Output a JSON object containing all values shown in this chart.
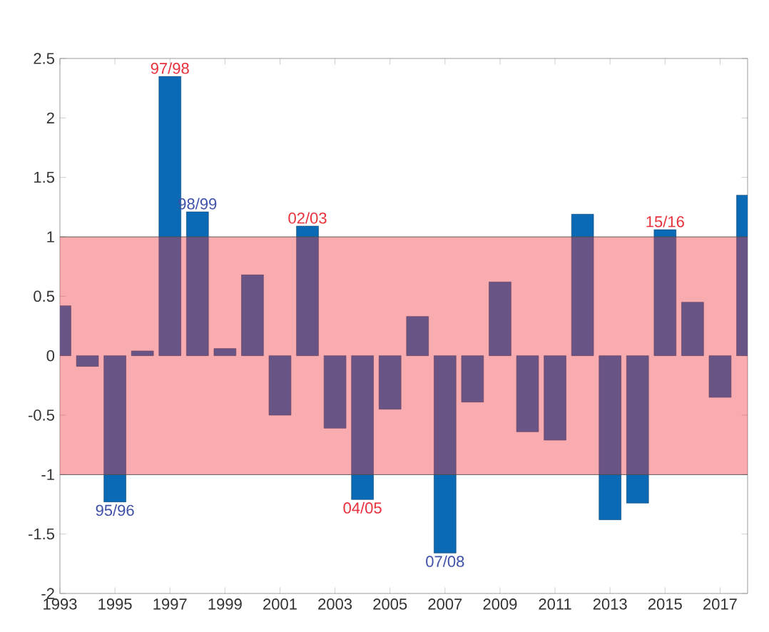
{
  "chart_data": {
    "type": "bar",
    "x": [
      1993,
      1994,
      1995,
      1996,
      1997,
      1998,
      1999,
      2000,
      2001,
      2002,
      2003,
      2004,
      2005,
      2006,
      2007,
      2008,
      2009,
      2010,
      2011,
      2012,
      2013,
      2014,
      2015,
      2016,
      2017,
      2018
    ],
    "values": [
      0.42,
      -0.09,
      -1.23,
      0.04,
      2.35,
      1.21,
      0.06,
      0.68,
      -0.5,
      1.09,
      -0.61,
      -1.21,
      -0.45,
      0.33,
      -1.66,
      -0.39,
      0.62,
      -0.64,
      -0.71,
      1.19,
      -1.38,
      -1.24,
      1.06,
      0.45,
      -0.35,
      1.35
    ],
    "color": "#0a6ab5",
    "xlim": [
      1993,
      2018
    ],
    "xticks": [
      1993,
      1995,
      1997,
      1999,
      2001,
      2003,
      2005,
      2007,
      2009,
      2011,
      2013,
      2015,
      2017
    ],
    "ylim": [
      -2,
      2.5
    ],
    "yticks": [
      -2,
      -1.5,
      -1,
      -0.5,
      0,
      0.5,
      1,
      1.5,
      2,
      2.5
    ],
    "bands": [
      {
        "axis": "y",
        "from": -1,
        "to": 1,
        "color": "#ee3a43"
      }
    ],
    "annotations": [
      {
        "text": "97/98",
        "x": 1997,
        "y": 2.35
      },
      {
        "text": "98/99",
        "x": 1998,
        "y": 1.21
      },
      {
        "text": "02/03",
        "x": 2002,
        "y": 1.09
      },
      {
        "text": "15/16",
        "x": 2015,
        "y": 1.06
      },
      {
        "text": "95/96",
        "x": 1995,
        "y": -1.23
      },
      {
        "text": "04/05",
        "x": 2004,
        "y": -1.21
      },
      {
        "text": "07/08",
        "x": 2007,
        "y": -1.66
      }
    ]
  }
}
